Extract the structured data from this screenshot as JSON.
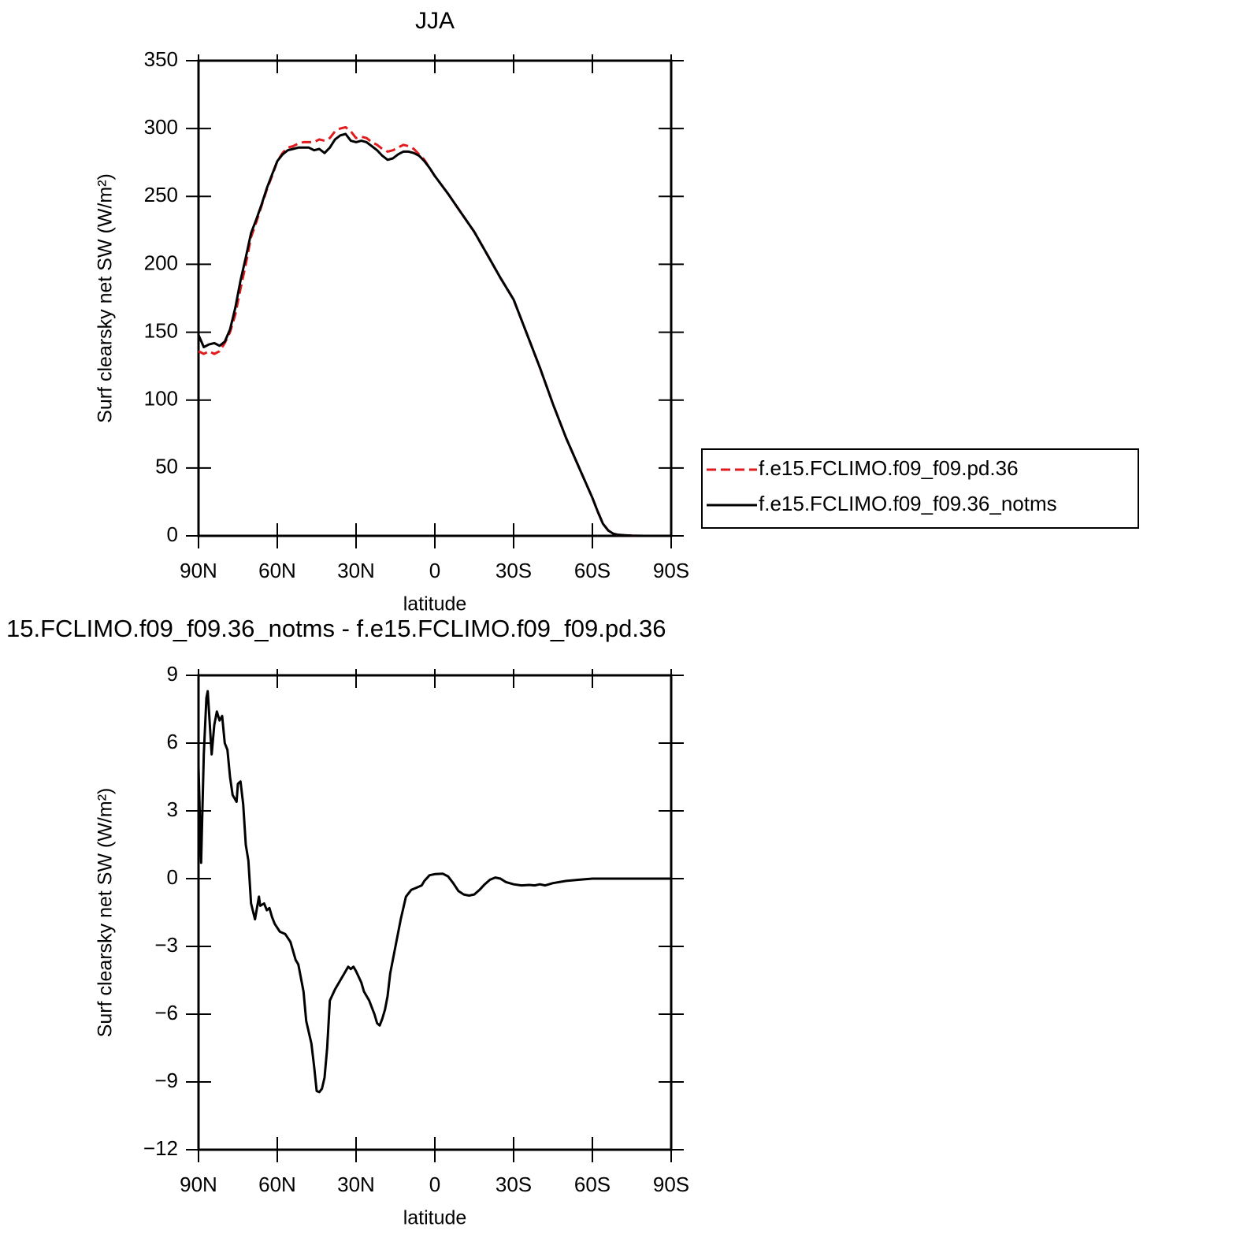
{
  "chart_data": [
    {
      "type": "line",
      "title": "JJA",
      "xlabel": "latitude",
      "ylabel": "Surf clearsky net SW (W/m²)",
      "xlim": [
        90,
        -90
      ],
      "ylim": [
        0,
        350
      ],
      "xticks": [
        {
          "value": 90,
          "label": "90N"
        },
        {
          "value": 60,
          "label": "60N"
        },
        {
          "value": 30,
          "label": "30N"
        },
        0,
        {
          "value": -30,
          "label": "30S"
        },
        {
          "value": -60,
          "label": "60S"
        },
        {
          "value": -90,
          "label": "90S"
        }
      ],
      "yticks": [
        0,
        50,
        100,
        150,
        200,
        250,
        300,
        350
      ],
      "legend": "right",
      "x": [
        90,
        88,
        86,
        84,
        82,
        80,
        78,
        76,
        74,
        72,
        70,
        68,
        66,
        64,
        62,
        60,
        58,
        56,
        54,
        52,
        50,
        48,
        46,
        44,
        42,
        40,
        38,
        36,
        34,
        32,
        30,
        28,
        26,
        24,
        22,
        20,
        18,
        16,
        14,
        12,
        10,
        8,
        6,
        4,
        2,
        0,
        -5,
        -10,
        -15,
        -20,
        -25,
        -30,
        -35,
        -40,
        -45,
        -50,
        -55,
        -60,
        -62,
        -64,
        -66,
        -68,
        -70,
        -75,
        -80,
        -90
      ],
      "series": [
        {
          "name": "f.e15.FCLIMO.f09_f09.pd.36",
          "color": "#e31a1c",
          "dashed": true,
          "values": [
            136,
            134,
            136,
            134,
            136,
            142,
            150,
            163,
            182,
            200,
            220,
            231,
            243,
            255,
            265,
            276,
            282,
            286,
            287,
            289,
            290,
            290,
            290,
            292,
            291,
            293,
            298,
            300,
            301,
            298,
            293,
            294,
            293,
            290,
            288,
            285,
            283,
            284,
            286,
            288,
            287,
            285,
            281,
            277,
            271,
            265,
            252,
            238,
            224,
            207,
            190,
            174,
            149,
            124,
            97,
            72,
            50,
            28,
            18,
            9,
            4,
            1.5,
            0.7,
            0.2,
            0,
            0
          ]
        },
        {
          "name": "f.e15.FCLIMO.f09_f09.36_notms",
          "color": "#000000",
          "dashed": false,
          "values": [
            148,
            139,
            141,
            142,
            140,
            143,
            152,
            168,
            188,
            205,
            223,
            233,
            244,
            256,
            266,
            276,
            281,
            284,
            285,
            286,
            286,
            286,
            284,
            285,
            282,
            286,
            292,
            295,
            296,
            291,
            290,
            291,
            290,
            287,
            284,
            280,
            277,
            278,
            281,
            283,
            283,
            282,
            280,
            276,
            271,
            265,
            252,
            238,
            224,
            207,
            190,
            174,
            149,
            124,
            97,
            72,
            50,
            28,
            18,
            9,
            4,
            1.5,
            0.7,
            0.2,
            0,
            0
          ]
        }
      ]
    },
    {
      "type": "line",
      "title": "15.FCLIMO.f09_f09.36_notms - f.e15.FCLIMO.f09_f09.pd.36",
      "xlabel": "latitude",
      "ylabel": "Surf clearsky net SW (W/m²)",
      "xlim": [
        90,
        -90
      ],
      "ylim": [
        -12,
        9
      ],
      "xticks": [
        {
          "value": 90,
          "label": "90N"
        },
        {
          "value": 60,
          "label": "60N"
        },
        {
          "value": 30,
          "label": "30N"
        },
        0,
        {
          "value": -30,
          "label": "30S"
        },
        {
          "value": -60,
          "label": "60S"
        },
        {
          "value": -90,
          "label": "90S"
        }
      ],
      "yticks": [
        {
          "value": -12,
          "label": "−12"
        },
        {
          "value": -9,
          "label": "−9"
        },
        {
          "value": -6,
          "label": "−6"
        },
        {
          "value": -3,
          "label": "−3"
        },
        0,
        3,
        6,
        9
      ],
      "x": [
        90,
        89,
        88,
        87,
        86.5,
        85,
        84,
        83,
        82,
        81,
        80,
        79,
        78,
        77,
        75.5,
        75,
        74,
        73,
        72,
        71,
        70,
        68.5,
        67,
        66.5,
        65,
        64,
        63,
        62,
        61,
        59,
        57,
        55,
        53,
        52,
        50,
        49,
        47,
        46,
        45,
        44,
        43,
        42,
        41,
        40,
        38,
        36,
        34,
        33,
        32,
        31,
        30,
        28,
        27,
        25,
        23,
        22,
        21,
        20,
        19,
        18,
        17,
        15,
        13,
        11,
        9,
        7,
        5,
        4,
        2,
        0,
        -3,
        -5,
        -7,
        -9,
        -11,
        -13,
        -15,
        -17,
        -19,
        -21,
        -23,
        -25,
        -27,
        -30,
        -33,
        -36,
        -38,
        -40,
        -42,
        -45,
        -50,
        -55,
        -60,
        -90
      ],
      "series": [
        {
          "color": "#000000",
          "dashed": false,
          "values": [
            5,
            0.7,
            5.5,
            8,
            8.3,
            5.5,
            6.8,
            7.4,
            7,
            7.2,
            6,
            5.7,
            4.5,
            3.7,
            3.4,
            4.2,
            4.3,
            3.3,
            1.5,
            0.8,
            -1.1,
            -1.8,
            -0.8,
            -1.2,
            -1.1,
            -1.4,
            -1.3,
            -1.7,
            -2.0,
            -2.35,
            -2.45,
            -2.8,
            -3.6,
            -3.8,
            -5,
            -6.3,
            -7.3,
            -8.3,
            -9.4,
            -9.45,
            -9.3,
            -8.8,
            -7.5,
            -5.4,
            -4.9,
            -4.5,
            -4.1,
            -3.9,
            -4.0,
            -3.9,
            -4.1,
            -4.6,
            -5.0,
            -5.4,
            -6.0,
            -6.4,
            -6.5,
            -6.2,
            -5.8,
            -5.2,
            -4.2,
            -3.0,
            -1.8,
            -0.8,
            -0.5,
            -0.4,
            -0.3,
            -0.1,
            0.15,
            0.2,
            0.22,
            0.1,
            -0.2,
            -0.55,
            -0.7,
            -0.75,
            -0.7,
            -0.5,
            -0.25,
            -0.05,
            0.05,
            0,
            -0.15,
            -0.25,
            -0.3,
            -0.28,
            -0.3,
            -0.25,
            -0.3,
            -0.2,
            -0.1,
            -0.05,
            0,
            0
          ]
        }
      ]
    }
  ]
}
